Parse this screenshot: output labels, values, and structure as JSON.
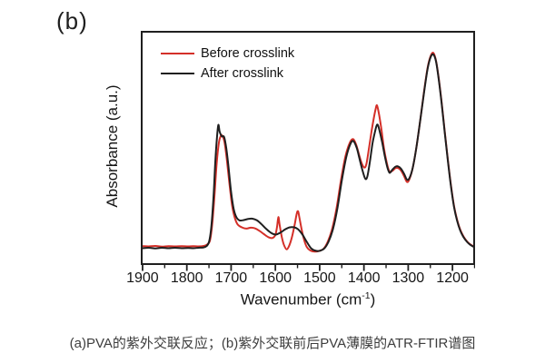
{
  "panel_label": "(b)",
  "caption": "(a)PVA的紫外交联反应；(b)紫外交联前后PVA薄膜的ATR-FTIR谱图",
  "colors": {
    "background": "#ffffff",
    "axis": "#1f1f1f",
    "before_crosslink_red": "#d42f28",
    "after_crosslink_black": "#1f1f1f"
  },
  "chart_data": {
    "type": "line",
    "title": "",
    "y_axis": {
      "label": "Absorbance (a.u.)",
      "units": "arbitrary",
      "range": [
        0,
        1
      ],
      "ticks": []
    },
    "x_axis": {
      "label_main": "Wavenumber (cm",
      "label_sup": "-1",
      "label_end": ")",
      "min": 1904,
      "max": 1149,
      "reversed": true,
      "ticks_major": [
        1900,
        1800,
        1700,
        1600,
        1500,
        1400,
        1300,
        1200
      ],
      "ticks_minor": [
        1850,
        1750,
        1650,
        1550,
        1450,
        1350,
        1250,
        1150
      ]
    },
    "legend": {
      "position": "top-left-inside",
      "entries": [
        {
          "label": "Before crosslink",
          "color": "#d42f28"
        },
        {
          "label": "After crosslink",
          "color": "#1f1f1f"
        }
      ]
    },
    "series": [
      {
        "name": "Before crosslink",
        "color": "#d42f28",
        "points": [
          [
            1904,
            0.074
          ],
          [
            1890,
            0.073
          ],
          [
            1875,
            0.075
          ],
          [
            1860,
            0.072
          ],
          [
            1845,
            0.074
          ],
          [
            1830,
            0.073
          ],
          [
            1815,
            0.074
          ],
          [
            1800,
            0.073
          ],
          [
            1788,
            0.074
          ],
          [
            1776,
            0.073
          ],
          [
            1764,
            0.075
          ],
          [
            1756,
            0.082
          ],
          [
            1750,
            0.1
          ],
          [
            1745,
            0.17
          ],
          [
            1740,
            0.29
          ],
          [
            1735,
            0.43
          ],
          [
            1730,
            0.52
          ],
          [
            1726,
            0.55
          ],
          [
            1722,
            0.553
          ],
          [
            1717,
            0.525
          ],
          [
            1712,
            0.455
          ],
          [
            1706,
            0.35
          ],
          [
            1700,
            0.255
          ],
          [
            1694,
            0.2
          ],
          [
            1687,
            0.168
          ],
          [
            1677,
            0.155
          ],
          [
            1667,
            0.15
          ],
          [
            1657,
            0.154
          ],
          [
            1647,
            0.151
          ],
          [
            1637,
            0.14
          ],
          [
            1627,
            0.126
          ],
          [
            1617,
            0.113
          ],
          [
            1608,
            0.109
          ],
          [
            1601,
            0.122
          ],
          [
            1597,
            0.158
          ],
          [
            1594,
            0.2
          ],
          [
            1591,
            0.165
          ],
          [
            1586,
            0.112
          ],
          [
            1581,
            0.078
          ],
          [
            1575,
            0.06
          ],
          [
            1569,
            0.077
          ],
          [
            1563,
            0.113
          ],
          [
            1557,
            0.165
          ],
          [
            1552,
            0.215
          ],
          [
            1549,
            0.225
          ],
          [
            1546,
            0.198
          ],
          [
            1541,
            0.148
          ],
          [
            1535,
            0.1
          ],
          [
            1529,
            0.07
          ],
          [
            1521,
            0.055
          ],
          [
            1511,
            0.05
          ],
          [
            1501,
            0.053
          ],
          [
            1491,
            0.062
          ],
          [
            1481,
            0.094
          ],
          [
            1471,
            0.15
          ],
          [
            1461,
            0.24
          ],
          [
            1451,
            0.36
          ],
          [
            1441,
            0.462
          ],
          [
            1431,
            0.522
          ],
          [
            1423,
            0.538
          ],
          [
            1416,
            0.512
          ],
          [
            1410,
            0.472
          ],
          [
            1404,
            0.435
          ],
          [
            1398,
            0.415
          ],
          [
            1393,
            0.43
          ],
          [
            1387,
            0.5
          ],
          [
            1381,
            0.575
          ],
          [
            1376,
            0.63
          ],
          [
            1372,
            0.668
          ],
          [
            1369,
            0.685
          ],
          [
            1365,
            0.655
          ],
          [
            1359,
            0.585
          ],
          [
            1353,
            0.5
          ],
          [
            1347,
            0.44
          ],
          [
            1341,
            0.4
          ],
          [
            1334,
            0.4
          ],
          [
            1327,
            0.412
          ],
          [
            1321,
            0.413
          ],
          [
            1314,
            0.402
          ],
          [
            1307,
            0.378
          ],
          [
            1300,
            0.352
          ],
          [
            1294,
            0.368
          ],
          [
            1287,
            0.415
          ],
          [
            1279,
            0.5
          ],
          [
            1270,
            0.62
          ],
          [
            1261,
            0.75
          ],
          [
            1253,
            0.85
          ],
          [
            1246,
            0.9
          ],
          [
            1240,
            0.912
          ],
          [
            1234,
            0.878
          ],
          [
            1228,
            0.805
          ],
          [
            1221,
            0.695
          ],
          [
            1214,
            0.57
          ],
          [
            1207,
            0.45
          ],
          [
            1200,
            0.34
          ],
          [
            1193,
            0.25
          ],
          [
            1186,
            0.19
          ],
          [
            1179,
            0.147
          ],
          [
            1171,
            0.115
          ],
          [
            1163,
            0.094
          ],
          [
            1156,
            0.082
          ],
          [
            1149,
            0.074
          ]
        ]
      },
      {
        "name": "After crosslink",
        "color": "#1f1f1f",
        "points": [
          [
            1904,
            0.065
          ],
          [
            1890,
            0.067
          ],
          [
            1875,
            0.064
          ],
          [
            1860,
            0.067
          ],
          [
            1845,
            0.065
          ],
          [
            1830,
            0.067
          ],
          [
            1815,
            0.065
          ],
          [
            1800,
            0.066
          ],
          [
            1788,
            0.065
          ],
          [
            1776,
            0.067
          ],
          [
            1766,
            0.068
          ],
          [
            1758,
            0.074
          ],
          [
            1752,
            0.095
          ],
          [
            1747,
            0.16
          ],
          [
            1742,
            0.29
          ],
          [
            1738,
            0.44
          ],
          [
            1734,
            0.55
          ],
          [
            1731,
            0.6
          ],
          [
            1728,
            0.57
          ],
          [
            1723,
            0.55
          ],
          [
            1718,
            0.548
          ],
          [
            1713,
            0.5
          ],
          [
            1708,
            0.42
          ],
          [
            1702,
            0.31
          ],
          [
            1696,
            0.235
          ],
          [
            1690,
            0.2
          ],
          [
            1683,
            0.186
          ],
          [
            1673,
            0.187
          ],
          [
            1663,
            0.192
          ],
          [
            1653,
            0.193
          ],
          [
            1643,
            0.186
          ],
          [
            1633,
            0.17
          ],
          [
            1622,
            0.149
          ],
          [
            1611,
            0.132
          ],
          [
            1600,
            0.124
          ],
          [
            1589,
            0.133
          ],
          [
            1579,
            0.146
          ],
          [
            1569,
            0.155
          ],
          [
            1559,
            0.156
          ],
          [
            1549,
            0.147
          ],
          [
            1539,
            0.124
          ],
          [
            1529,
            0.092
          ],
          [
            1519,
            0.064
          ],
          [
            1509,
            0.054
          ],
          [
            1499,
            0.054
          ],
          [
            1489,
            0.064
          ],
          [
            1479,
            0.095
          ],
          [
            1469,
            0.15
          ],
          [
            1459,
            0.24
          ],
          [
            1449,
            0.36
          ],
          [
            1439,
            0.46
          ],
          [
            1430,
            0.515
          ],
          [
            1423,
            0.53
          ],
          [
            1415,
            0.5
          ],
          [
            1409,
            0.455
          ],
          [
            1403,
            0.41
          ],
          [
            1396,
            0.368
          ],
          [
            1391,
            0.375
          ],
          [
            1385,
            0.44
          ],
          [
            1379,
            0.52
          ],
          [
            1374,
            0.565
          ],
          [
            1370,
            0.595
          ],
          [
            1367,
            0.6
          ],
          [
            1363,
            0.575
          ],
          [
            1357,
            0.525
          ],
          [
            1351,
            0.465
          ],
          [
            1345,
            0.415
          ],
          [
            1340,
            0.392
          ],
          [
            1334,
            0.405
          ],
          [
            1327,
            0.418
          ],
          [
            1321,
            0.42
          ],
          [
            1314,
            0.41
          ],
          [
            1307,
            0.388
          ],
          [
            1300,
            0.362
          ],
          [
            1294,
            0.372
          ],
          [
            1287,
            0.415
          ],
          [
            1279,
            0.5
          ],
          [
            1270,
            0.62
          ],
          [
            1261,
            0.745
          ],
          [
            1253,
            0.845
          ],
          [
            1246,
            0.895
          ],
          [
            1240,
            0.905
          ],
          [
            1234,
            0.875
          ],
          [
            1228,
            0.8
          ],
          [
            1221,
            0.69
          ],
          [
            1214,
            0.565
          ],
          [
            1207,
            0.445
          ],
          [
            1200,
            0.335
          ],
          [
            1193,
            0.245
          ],
          [
            1186,
            0.185
          ],
          [
            1179,
            0.143
          ],
          [
            1171,
            0.112
          ],
          [
            1163,
            0.092
          ],
          [
            1156,
            0.08
          ],
          [
            1149,
            0.072
          ]
        ]
      }
    ]
  }
}
